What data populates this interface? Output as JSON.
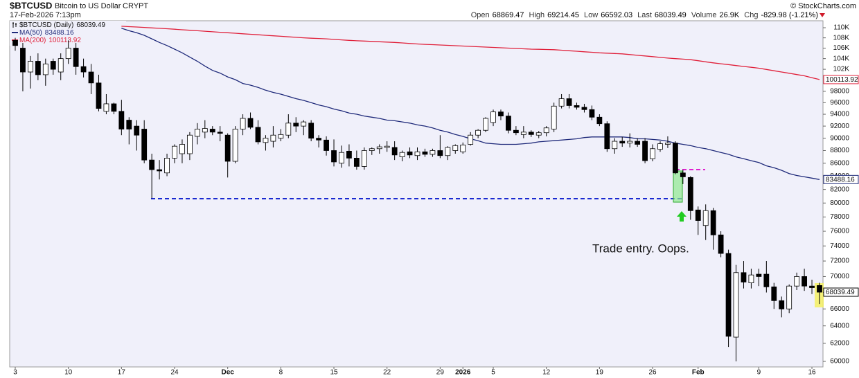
{
  "chart_data": {
    "type": "candlestick",
    "title": "$BTCUSD",
    "subtitle": "Bitcoin to US Dollar",
    "exchange": "CRYPT",
    "date": "17-Feb-2026 7:13pm",
    "credit": "© StockCharts.com",
    "quote": [
      {
        "label": "Open",
        "value": "68869.47"
      },
      {
        "label": "High",
        "value": "69214.45"
      },
      {
        "label": "Low",
        "value": "66592.03"
      },
      {
        "label": "Last",
        "value": "68039.49"
      },
      {
        "label": "Volume",
        "value": "26.9K"
      },
      {
        "label": "Chg",
        "value": "-829.98 (-1.21%)"
      }
    ],
    "annotation": "Trade entry. Oops.",
    "log_scale": true,
    "grid": false,
    "ylim": [
      59400,
      111400
    ],
    "yticks": [
      60000,
      62000,
      64000,
      66000,
      68000,
      70000,
      72000,
      74000,
      76000,
      78000,
      80000,
      82000,
      84000,
      86000,
      88000,
      90000,
      92000,
      94000,
      96000,
      98000,
      {
        "value": 102000,
        "label": "102K"
      },
      {
        "value": 104000,
        "label": "104K"
      },
      {
        "value": 106000,
        "label": "106K"
      },
      {
        "value": 108000,
        "label": "108K"
      },
      {
        "value": 110000,
        "label": "110K"
      }
    ],
    "categories": [
      "3",
      null,
      null,
      null,
      null,
      null,
      null,
      "10",
      null,
      null,
      null,
      null,
      null,
      null,
      "17",
      null,
      null,
      null,
      null,
      null,
      null,
      "24",
      null,
      null,
      null,
      null,
      null,
      null,
      "Dec",
      null,
      null,
      null,
      null,
      null,
      null,
      "8",
      null,
      null,
      null,
      null,
      null,
      null,
      "15",
      null,
      null,
      null,
      null,
      null,
      null,
      "22",
      null,
      null,
      null,
      null,
      null,
      null,
      "29",
      null,
      null,
      "2026",
      null,
      null,
      null,
      "5",
      null,
      null,
      null,
      null,
      null,
      null,
      "12",
      null,
      null,
      null,
      null,
      null,
      null,
      "19",
      null,
      null,
      null,
      null,
      null,
      null,
      "26",
      null,
      null,
      null,
      null,
      null,
      "Feb",
      null,
      null,
      null,
      null,
      null,
      null,
      null,
      "9",
      null,
      null,
      null,
      null,
      null,
      null,
      "16",
      null
    ],
    "candles": {
      "name": "$BTCUSD (Daily)",
      "up_color": "#ffffff",
      "down_color": "#000000",
      "open": [
        107500,
        106000,
        101500,
        103500,
        101000,
        103500,
        101500,
        104000,
        106000,
        102500,
        101500,
        99500,
        94500,
        95800,
        94500,
        93000,
        92000,
        91500,
        86500,
        85000,
        84500,
        86800,
        87500,
        87500,
        90300,
        91000,
        91500,
        91000,
        90500,
        86300,
        91500,
        93300,
        91800,
        89300,
        89500,
        90000,
        90500,
        92500,
        92000,
        92500,
        90000,
        89700,
        88000,
        86000,
        87900,
        86800,
        85500,
        88000,
        88300,
        88500,
        88500,
        87000,
        87800,
        87200,
        87800,
        87400,
        88000,
        87200,
        88000,
        87800,
        89000,
        90500,
        91300,
        92600,
        94400,
        93700,
        91300,
        90600,
        91000,
        90500,
        90900,
        91500,
        95400,
        96700,
        95500,
        95200,
        94800,
        93500,
        92400,
        88300,
        89500,
        89200,
        89500,
        89500,
        86700,
        88200,
        89000,
        89200,
        84500,
        83800,
        79000,
        76800,
        78900,
        75500,
        73000,
        62700,
        70500,
        69200,
        70300,
        70300,
        68700,
        67000,
        66000,
        68800,
        70000,
        68800,
        68869.47
      ],
      "high": [
        108000,
        107000,
        104500,
        105000,
        104000,
        104000,
        105000,
        107500,
        107000,
        104000,
        103000,
        101000,
        97500,
        96000,
        96500,
        93500,
        93000,
        93000,
        87500,
        86500,
        87500,
        89000,
        89800,
        91000,
        92500,
        93000,
        92000,
        92000,
        90800,
        92000,
        94000,
        94300,
        93000,
        90500,
        92000,
        91500,
        94000,
        93500,
        93000,
        93000,
        90500,
        90300,
        89800,
        88800,
        89000,
        88000,
        88500,
        88500,
        89000,
        89500,
        89500,
        88000,
        88500,
        88500,
        88300,
        88300,
        90500,
        88700,
        89000,
        89300,
        91000,
        91500,
        93500,
        94800,
        94800,
        94300,
        92000,
        92000,
        91300,
        91200,
        92000,
        96000,
        97500,
        97500,
        96000,
        95800,
        95500,
        94000,
        92800,
        90000,
        90200,
        90800,
        90000,
        90000,
        89000,
        89500,
        90300,
        89500,
        85000,
        84000,
        79500,
        79800,
        79300,
        76000,
        73500,
        71500,
        72000,
        71000,
        71000,
        72000,
        69200,
        67500,
        69000,
        70500,
        71000,
        69600,
        69214.45
      ],
      "low": [
        105500,
        98000,
        98500,
        100000,
        99000,
        101000,
        100000,
        103000,
        101000,
        100500,
        97500,
        94500,
        94000,
        94000,
        90500,
        89000,
        88000,
        86000,
        80700,
        83500,
        84000,
        86000,
        86000,
        86500,
        89000,
        90000,
        90500,
        89500,
        83800,
        86000,
        90500,
        91500,
        89000,
        88000,
        88500,
        89500,
        90000,
        91000,
        90500,
        89500,
        88500,
        87200,
        85500,
        85300,
        85500,
        85000,
        85000,
        87300,
        87500,
        87800,
        86500,
        86300,
        86800,
        86500,
        87000,
        87000,
        86800,
        86500,
        87500,
        87500,
        88800,
        90000,
        91000,
        92000,
        93000,
        90800,
        90500,
        90000,
        90200,
        90000,
        90300,
        91000,
        95000,
        95000,
        94800,
        94300,
        93000,
        92000,
        87800,
        87500,
        88600,
        88500,
        88600,
        86000,
        86300,
        87800,
        88400,
        84300,
        82800,
        77600,
        75500,
        74800,
        73500,
        72500,
        61600,
        60000,
        68500,
        68500,
        68800,
        68000,
        66000,
        65000,
        65500,
        68300,
        68200,
        67800,
        66592.03
      ],
      "close": [
        106500,
        101500,
        103500,
        101000,
        103000,
        102000,
        104000,
        106000,
        102500,
        101500,
        99500,
        95000,
        95800,
        94500,
        91500,
        91500,
        90500,
        86500,
        85000,
        84800,
        86800,
        88700,
        89000,
        90500,
        91500,
        91600,
        91000,
        90800,
        86300,
        91500,
        93300,
        91800,
        89400,
        90000,
        90500,
        90600,
        92500,
        92000,
        92700,
        90000,
        89700,
        88000,
        86200,
        87700,
        86800,
        85500,
        88000,
        88300,
        88600,
        88700,
        87300,
        87700,
        87300,
        87800,
        87400,
        88000,
        87200,
        88500,
        88800,
        88900,
        90500,
        91300,
        93300,
        94400,
        93700,
        91300,
        90900,
        91000,
        90600,
        90900,
        91700,
        95400,
        96700,
        95500,
        95200,
        94800,
        93500,
        92400,
        88300,
        89500,
        89200,
        89500,
        89000,
        86400,
        88300,
        89100,
        89200,
        84500,
        83900,
        78900,
        77500,
        78900,
        75500,
        73000,
        62800,
        70500,
        69300,
        70200,
        70000,
        68700,
        67000,
        66000,
        68800,
        70000,
        68800,
        68600,
        68039.49
      ]
    },
    "series": [
      {
        "name": "MA(50)",
        "color": "#1f2a7a",
        "values": [
          null,
          null,
          null,
          null,
          null,
          null,
          null,
          null,
          null,
          null,
          null,
          null,
          null,
          null,
          109900,
          109400,
          109000,
          108500,
          107800,
          107100,
          106500,
          105800,
          105100,
          104300,
          103500,
          102600,
          101800,
          101300,
          100600,
          100100,
          99400,
          99100,
          98700,
          98200,
          97800,
          97500,
          97100,
          96700,
          96400,
          96000,
          95600,
          95300,
          94900,
          94600,
          94200,
          94000,
          93700,
          93500,
          93300,
          93000,
          92900,
          92700,
          92500,
          92200,
          92000,
          91700,
          91300,
          91000,
          90600,
          90300,
          89900,
          89600,
          89200,
          89100,
          89000,
          89000,
          89000,
          89100,
          89200,
          89400,
          89500,
          89600,
          89700,
          89800,
          89900,
          90100,
          90200,
          90200,
          90200,
          90200,
          90200,
          90100,
          89900,
          89900,
          89800,
          89700,
          89500,
          89200,
          89000,
          88800,
          88500,
          88300,
          88000,
          87700,
          87400,
          87000,
          86700,
          86400,
          86100,
          85600,
          85300,
          84900,
          84400,
          84100,
          83900,
          83700,
          83488.16
        ]
      },
      {
        "name": "MA(200)",
        "color": "#e0203a",
        "values": [
          null,
          null,
          null,
          null,
          null,
          null,
          null,
          null,
          null,
          null,
          null,
          null,
          null,
          null,
          110300,
          110220,
          110140,
          110060,
          109970,
          109890,
          109800,
          109700,
          109600,
          109500,
          109400,
          109300,
          109200,
          109100,
          109000,
          108900,
          108800,
          108700,
          108600,
          108500,
          108400,
          108300,
          108200,
          108100,
          108000,
          107930,
          107870,
          107800,
          107700,
          107600,
          107500,
          107430,
          107370,
          107300,
          107230,
          107170,
          107100,
          107000,
          106900,
          106800,
          106730,
          106670,
          106600,
          106530,
          106470,
          106400,
          106330,
          106270,
          106200,
          106130,
          106070,
          106000,
          105930,
          105870,
          105800,
          105770,
          105730,
          105700,
          105600,
          105500,
          105400,
          105300,
          105200,
          105100,
          105030,
          104970,
          104900,
          104770,
          104630,
          104500,
          104370,
          104230,
          104100,
          104000,
          103900,
          103800,
          103600,
          103400,
          103200,
          103030,
          102870,
          102700,
          102530,
          102370,
          102200,
          101970,
          101730,
          101500,
          101270,
          101030,
          100800,
          100450,
          100113.92
        ]
      }
    ]
  }
}
